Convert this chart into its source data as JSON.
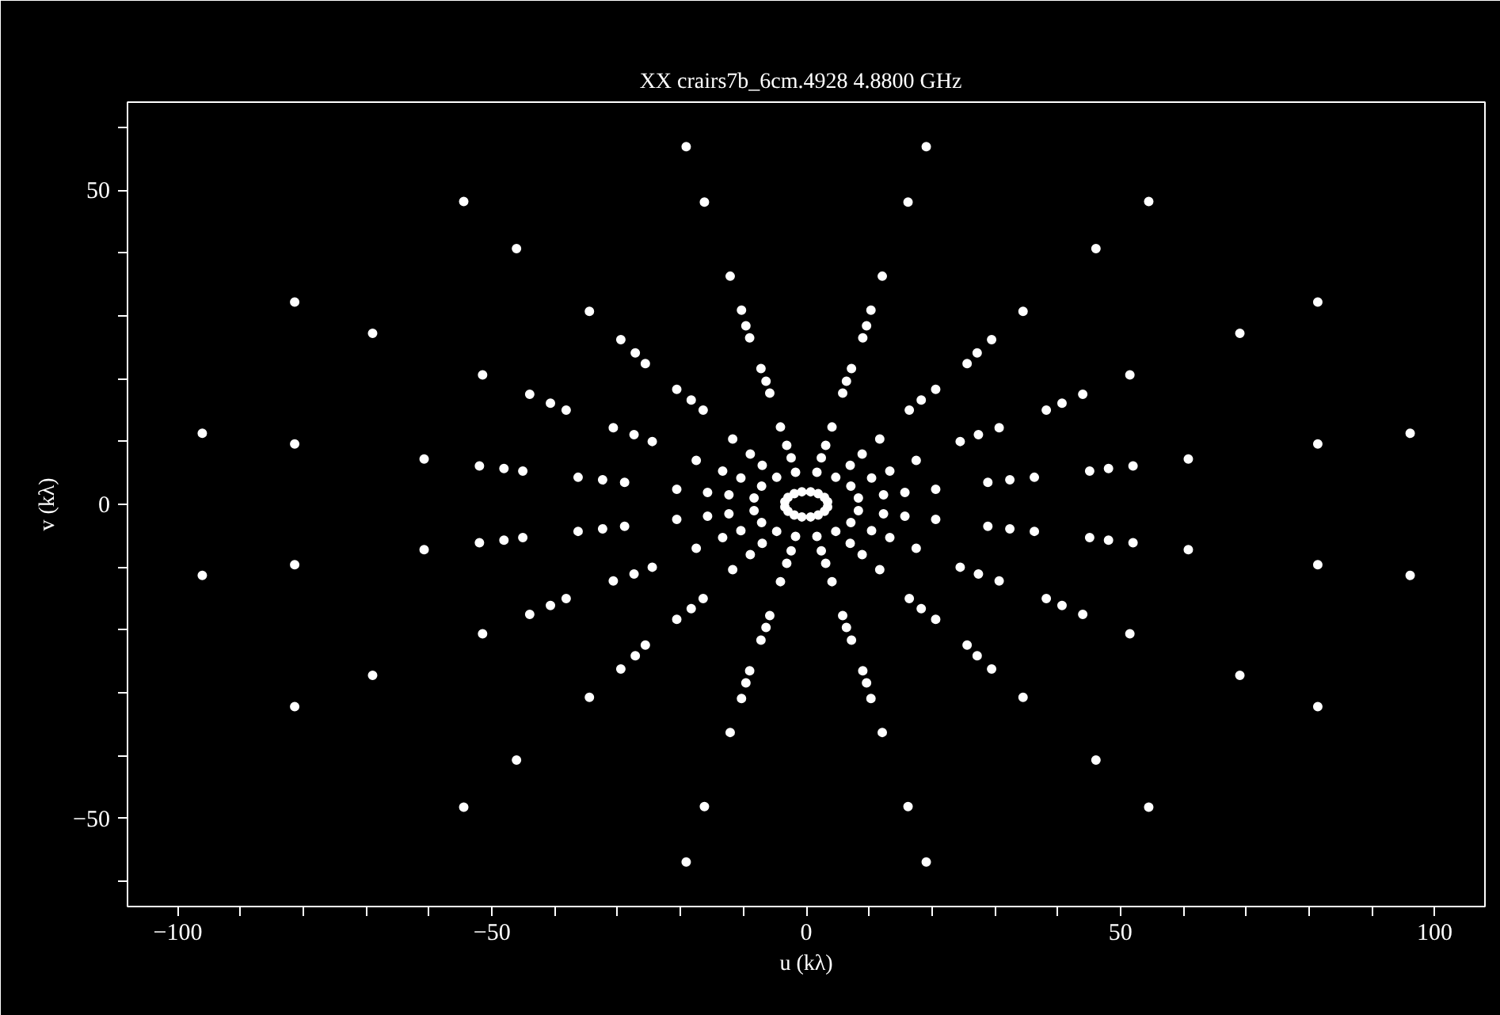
{
  "chart_data": {
    "type": "scatter",
    "title": "XX   crairs7b_6cm.4928 4.8800 GHz",
    "xlabel": "u (kλ)",
    "ylabel": "v (kλ)",
    "xlim": [
      -108,
      108
    ],
    "ylim": [
      -64,
      64
    ],
    "xticks": [
      {
        "value": -100,
        "label": "−100"
      },
      {
        "value": -90,
        "label": null
      },
      {
        "value": -80,
        "label": null
      },
      {
        "value": -70,
        "label": null
      },
      {
        "value": -60,
        "label": null
      },
      {
        "value": -50,
        "label": "−50"
      },
      {
        "value": -40,
        "label": null
      },
      {
        "value": -30,
        "label": null
      },
      {
        "value": -20,
        "label": null
      },
      {
        "value": -10,
        "label": null
      },
      0,
      {
        "value": 10,
        "label": null
      },
      {
        "value": 20,
        "label": null
      },
      {
        "value": 30,
        "label": null
      },
      {
        "value": 40,
        "label": null
      },
      50,
      {
        "value": 60,
        "label": null
      },
      {
        "value": 70,
        "label": null
      },
      {
        "value": 80,
        "label": null
      },
      {
        "value": 90,
        "label": null
      },
      100
    ],
    "yticks": [
      {
        "value": -60,
        "label": null
      },
      {
        "value": -50,
        "label": "−50"
      },
      {
        "value": -40,
        "label": null
      },
      {
        "value": -30,
        "label": null
      },
      {
        "value": -20,
        "label": null
      },
      {
        "value": -10,
        "label": null
      },
      0,
      {
        "value": 10,
        "label": null
      },
      {
        "value": 20,
        "label": null
      },
      {
        "value": 30,
        "label": null
      },
      {
        "value": 40,
        "label": null
      },
      50,
      {
        "value": 60,
        "label": null
      }
    ],
    "grid": false,
    "marker": "circle",
    "series": [
      {
        "color": "#ffffff",
        "x": [
          96.1,
          81.4,
          54.5,
          19.1,
          -96.1,
          -81.4,
          -54.5,
          -19.1,
          -96.1,
          -81.4,
          -54.5,
          -19.1,
          96.1,
          81.4,
          54.5,
          19.1
        ],
        "values": [
          11.3,
          32.2,
          48.2,
          56.9,
          11.3,
          32.2,
          48.2,
          56.9,
          -11.3,
          -32.2,
          -48.2,
          -56.9,
          -11.3,
          -32.2,
          -48.2,
          -56.9
        ]
      },
      {
        "color": "#ffffff",
        "x": [
          81.4,
          69.0,
          46.1,
          16.2,
          -81.4,
          -69.0,
          -46.1,
          -16.2,
          -81.4,
          -69.0,
          -46.1,
          -16.2,
          81.4,
          69.0,
          46.1,
          16.2
        ],
        "values": [
          9.6,
          27.2,
          40.7,
          48.1,
          9.6,
          27.2,
          40.7,
          48.1,
          -9.6,
          -27.2,
          -40.7,
          -48.1,
          -9.6,
          -27.2,
          -40.7,
          -48.1
        ]
      },
      {
        "color": "#ffffff",
        "x": [
          60.8,
          51.5,
          34.5,
          12.1,
          -60.8,
          -51.5,
          -34.5,
          -12.1,
          -60.8,
          -51.5,
          -34.5,
          -12.1,
          60.8,
          51.5,
          34.5,
          12.1
        ],
        "values": [
          7.2,
          20.6,
          30.7,
          36.3,
          7.2,
          20.6,
          30.7,
          36.3,
          -7.2,
          -20.6,
          -30.7,
          -36.3,
          -7.2,
          -20.6,
          -30.7,
          -36.3
        ]
      },
      {
        "color": "#ffffff",
        "x": [
          52.0,
          44.0,
          29.5,
          10.3,
          -52.0,
          -44.0,
          -29.5,
          -10.3,
          -52.0,
          -44.0,
          -29.5,
          -10.3,
          52.0,
          44.0,
          29.5,
          10.3
        ],
        "values": [
          6.1,
          17.5,
          26.2,
          30.9,
          6.1,
          17.5,
          26.2,
          30.9,
          -6.1,
          -17.5,
          -26.2,
          -30.9,
          -6.1,
          -17.5,
          -26.2,
          -30.9
        ]
      },
      {
        "color": "#ffffff",
        "x": [
          48.1,
          40.7,
          27.2,
          9.6,
          -48.1,
          -40.7,
          -27.2,
          -9.6,
          -48.1,
          -40.7,
          -27.2,
          -9.6,
          48.1,
          40.7,
          27.2,
          9.6
        ],
        "values": [
          5.7,
          16.1,
          24.1,
          28.4,
          5.7,
          16.1,
          24.1,
          28.4,
          -5.7,
          -16.1,
          -24.1,
          -28.4,
          -5.7,
          -16.1,
          -24.1,
          -28.4
        ]
      },
      {
        "color": "#ffffff",
        "x": [
          45.1,
          38.2,
          25.6,
          9.0,
          -45.1,
          -38.2,
          -25.6,
          -9.0,
          -45.1,
          -38.2,
          -25.6,
          -9.0,
          45.1,
          38.2,
          25.6,
          9.0
        ],
        "values": [
          5.3,
          15.0,
          22.4,
          26.5,
          5.3,
          15.0,
          22.4,
          26.5,
          -5.3,
          -15.0,
          -22.4,
          -26.5,
          -5.3,
          -15.0,
          -22.4,
          -26.5
        ]
      },
      {
        "color": "#ffffff",
        "x": [
          36.3,
          30.7,
          20.6,
          7.2,
          -36.3,
          -30.7,
          -20.6,
          -7.2,
          -36.3,
          -30.7,
          -20.6,
          -7.2,
          36.3,
          30.7,
          20.6,
          7.2
        ],
        "values": [
          4.3,
          12.2,
          18.3,
          21.6,
          4.3,
          12.2,
          18.3,
          21.6,
          -4.3,
          -12.2,
          -18.3,
          -21.6,
          -4.3,
          -12.2,
          -18.3,
          -21.6
        ]
      },
      {
        "color": "#ffffff",
        "x": [
          32.4,
          27.4,
          18.3,
          6.4,
          -32.4,
          -27.4,
          -18.3,
          -6.4,
          -32.4,
          -27.4,
          -18.3,
          -6.4,
          32.4,
          27.4,
          18.3,
          6.4
        ],
        "values": [
          3.9,
          11.1,
          16.6,
          19.6,
          3.9,
          11.1,
          16.6,
          19.6,
          -3.9,
          -11.1,
          -16.6,
          -19.6,
          -3.9,
          -11.1,
          -16.6,
          -19.6
        ]
      },
      {
        "color": "#ffffff",
        "x": [
          28.9,
          24.5,
          16.4,
          5.8,
          -28.9,
          -24.5,
          -16.4,
          -5.8,
          -28.9,
          -24.5,
          -16.4,
          -5.8,
          28.9,
          24.5,
          16.4,
          5.8
        ],
        "values": [
          3.5,
          10.0,
          15.0,
          17.7,
          3.5,
          10.0,
          15.0,
          17.7,
          -3.5,
          -10.0,
          -15.0,
          -17.7,
          -3.5,
          -10.0,
          -15.0,
          -17.7
        ]
      },
      {
        "color": "#ffffff",
        "x": [
          20.6,
          17.5,
          11.7,
          4.1,
          -20.6,
          -17.5,
          -11.7,
          -4.1,
          -20.6,
          -17.5,
          -11.7,
          -4.1,
          20.6,
          17.5,
          11.7,
          4.1
        ],
        "values": [
          2.4,
          7.0,
          10.4,
          12.3,
          2.4,
          7.0,
          10.4,
          12.3,
          -2.4,
          -7.0,
          -10.4,
          -12.3,
          -2.4,
          -7.0,
          -10.4,
          -12.3
        ]
      },
      {
        "color": "#ffffff",
        "x": [
          15.7,
          13.3,
          8.9,
          3.1,
          -15.7,
          -13.3,
          -8.9,
          -3.1,
          -15.7,
          -13.3,
          -8.9,
          -3.1,
          15.7,
          13.3,
          8.9,
          3.1
        ],
        "values": [
          1.9,
          5.3,
          8.0,
          9.4,
          1.9,
          5.3,
          8.0,
          9.4,
          -1.9,
          -5.3,
          -8.0,
          -9.4,
          -1.9,
          -5.3,
          -8.0,
          -9.4
        ]
      },
      {
        "color": "#ffffff",
        "x": [
          12.3,
          10.4,
          7.0,
          2.4,
          -12.3,
          -10.4,
          -7.0,
          -2.4,
          -12.3,
          -10.4,
          -7.0,
          -2.4,
          12.3,
          10.4,
          7.0,
          2.4
        ],
        "values": [
          1.5,
          4.2,
          6.2,
          7.4,
          1.5,
          4.2,
          6.2,
          7.4,
          -1.5,
          -4.2,
          -6.2,
          -7.4,
          -1.5,
          -4.2,
          -6.2,
          -7.4
        ]
      },
      {
        "color": "#ffffff",
        "x": [
          8.3,
          7.1,
          4.7,
          1.7,
          -8.3,
          -7.1,
          -4.7,
          -1.7,
          -8.3,
          -7.1,
          -4.7,
          -1.7,
          8.3,
          7.1,
          4.7,
          1.7
        ],
        "values": [
          1.0,
          2.9,
          4.3,
          5.1,
          1.0,
          2.9,
          4.3,
          5.1,
          -1.0,
          -2.9,
          -4.3,
          -5.1,
          -1.0,
          -2.9,
          -4.3,
          -5.1
        ]
      },
      {
        "color": "#ffffff",
        "x": [
          3.4,
          2.9,
          1.9,
          0.7,
          -3.4,
          -2.9,
          -1.9,
          -0.7,
          -3.4,
          -2.9,
          -1.9,
          -0.7,
          3.4,
          2.9,
          1.9,
          0.7
        ],
        "values": [
          0.4,
          1.1,
          1.7,
          2.0,
          0.4,
          1.1,
          1.7,
          2.0,
          -0.4,
          -1.1,
          -1.7,
          -2.0,
          -0.4,
          -1.1,
          -1.7,
          -2.0
        ]
      }
    ]
  }
}
